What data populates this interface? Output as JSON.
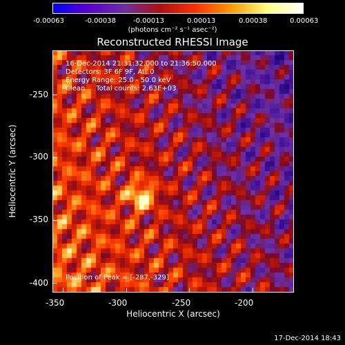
{
  "colorbar": {
    "ticks": [
      "-0.00063",
      "-0.00038",
      "-0.00013",
      "0.00013",
      "0.00038",
      "0.00063"
    ],
    "unit_label": "(photons cm⁻² s⁻¹ asec⁻²)",
    "colors": [
      "#0000ff",
      "#5a00d0",
      "#6b2fa0",
      "#b01010",
      "#ff3000",
      "#ff9a00",
      "#ffff80",
      "#ffffff"
    ]
  },
  "title": "Reconstructed RHESSI Image",
  "info": {
    "line1": "16-Dec-2014 21:31:32.000 to 21:36:50.000",
    "line2": "Detectors: 3F 6F 9F, Att 0",
    "line3": "Energy Range: 25.0 - 50.0 keV",
    "line4": "Clean     Total counts: 2.63E+03",
    "peak": "Position of Peak = [-287,-329]"
  },
  "axes": {
    "xlabel": "Heliocentric X (arcsec)",
    "ylabel": "Heliocentric Y (arcsec)",
    "xticks": [
      "-350",
      "-300",
      "-250",
      "-200"
    ],
    "yticks": [
      "-250",
      "-300",
      "-350",
      "-400"
    ]
  },
  "footer": "17-Dec-2014 18:43"
}
